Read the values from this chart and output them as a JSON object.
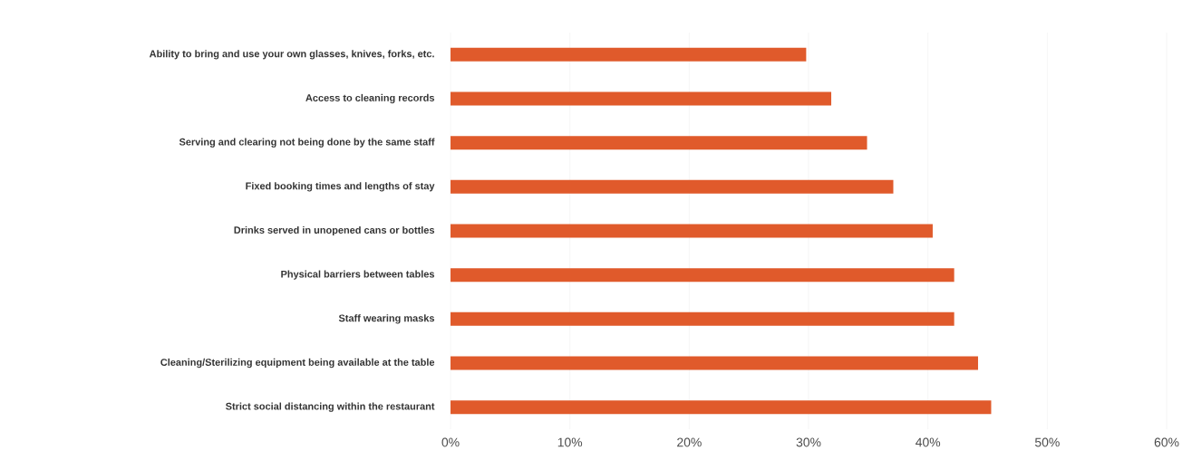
{
  "chart_data": {
    "type": "bar",
    "orientation": "horizontal",
    "categories": [
      "Ability to bring and use your own glasses, knives, forks, etc.",
      "Access to cleaning records",
      "Serving and clearing not being done by the same staff",
      "Fixed booking times and lengths of stay",
      "Drinks served in unopened cans or bottles",
      "Physical barriers between tables",
      "Staff wearing masks",
      "Cleaning/Sterilizing equipment being available at the table",
      "Strict social distancing within the restaurant"
    ],
    "values": [
      29.8,
      31.9,
      34.9,
      37.1,
      40.4,
      42.2,
      42.2,
      44.2,
      45.3
    ],
    "color": "#e05a2b",
    "xlim": [
      0,
      60
    ],
    "xticks": [
      {
        "value": 0,
        "label": "0%"
      },
      {
        "value": 10,
        "label": "10%"
      },
      {
        "value": 20,
        "label": "20%"
      },
      {
        "value": 30,
        "label": "30%"
      },
      {
        "value": 40,
        "label": "40%"
      },
      {
        "value": 50,
        "label": "50%"
      },
      {
        "value": 60,
        "label": "60%"
      }
    ],
    "grid": "x"
  }
}
